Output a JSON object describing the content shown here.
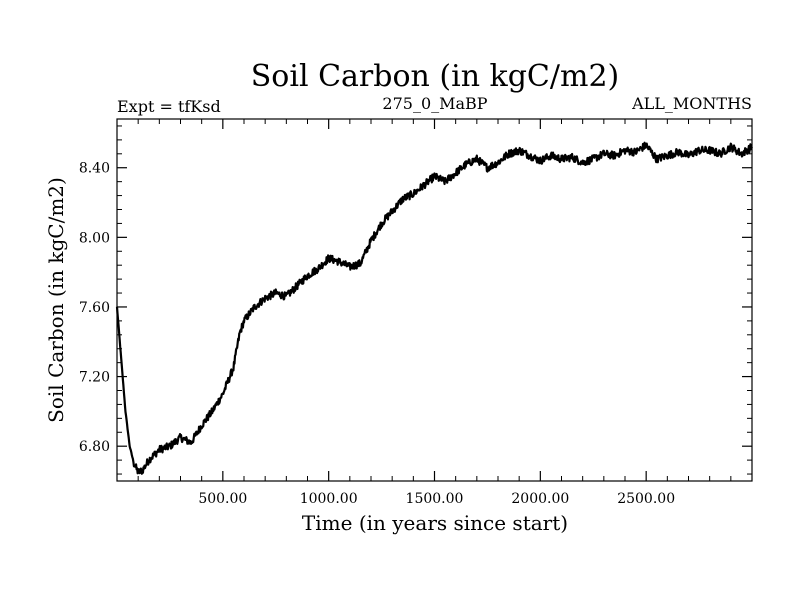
{
  "colors": {
    "background": "#ffffff",
    "line": "#000000",
    "axis": "#000000"
  },
  "chart_data": {
    "type": "line",
    "title": "Soil Carbon (in kgC/m2)",
    "subtitle_left": "Expt = tfKsd",
    "subtitle_center": "275_0_MaBP",
    "subtitle_right": "ALL_MONTHS",
    "xlabel": "Time (in years since start)",
    "ylabel": "Soil Carbon (in kgC/m2)",
    "xlim": [
      0,
      3000
    ],
    "ylim": [
      6.6,
      8.68
    ],
    "x_ticks": [
      500,
      1000,
      1500,
      2000,
      2500
    ],
    "x_tick_labels": [
      "500.00",
      "1000.00",
      "1500.00",
      "2000.00",
      "2500.00"
    ],
    "y_ticks": [
      6.8,
      7.2,
      7.6,
      8.0,
      8.4
    ],
    "y_tick_labels": [
      "6.80",
      "7.20",
      "7.60",
      "8.00",
      "8.40"
    ],
    "grid": false,
    "series": [
      {
        "name": "Soil Carbon",
        "x": [
          0,
          20,
          40,
          60,
          80,
          100,
          120,
          150,
          200,
          250,
          300,
          350,
          400,
          450,
          500,
          550,
          580,
          600,
          650,
          700,
          750,
          800,
          850,
          900,
          950,
          1000,
          1050,
          1100,
          1150,
          1200,
          1250,
          1300,
          1350,
          1400,
          1450,
          1500,
          1550,
          1600,
          1650,
          1700,
          1750,
          1800,
          1850,
          1900,
          1950,
          2000,
          2050,
          2100,
          2150,
          2200,
          2250,
          2300,
          2350,
          2400,
          2450,
          2500,
          2550,
          2600,
          2650,
          2700,
          2750,
          2800,
          2850,
          2900,
          2950,
          3000
        ],
        "values": [
          7.6,
          7.3,
          7.0,
          6.8,
          6.7,
          6.65,
          6.66,
          6.72,
          6.78,
          6.8,
          6.85,
          6.82,
          6.92,
          7.0,
          7.1,
          7.25,
          7.45,
          7.52,
          7.6,
          7.65,
          7.68,
          7.66,
          7.72,
          7.78,
          7.82,
          7.88,
          7.86,
          7.83,
          7.85,
          7.98,
          8.08,
          8.15,
          8.22,
          8.25,
          8.3,
          8.35,
          8.32,
          8.37,
          8.42,
          8.45,
          8.4,
          8.43,
          8.48,
          8.5,
          8.47,
          8.44,
          8.47,
          8.45,
          8.46,
          8.43,
          8.45,
          8.48,
          8.47,
          8.5,
          8.49,
          8.53,
          8.45,
          8.47,
          8.49,
          8.47,
          8.5,
          8.5,
          8.48,
          8.52,
          8.48,
          8.52
        ]
      }
    ]
  }
}
